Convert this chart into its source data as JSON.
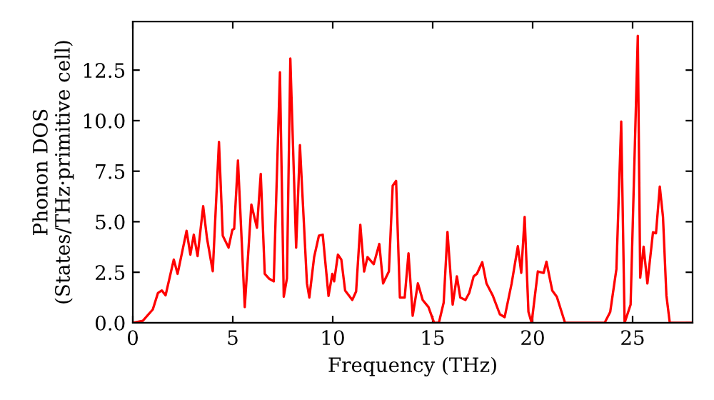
{
  "chart_data": {
    "type": "line",
    "xlabel": "Frequency (THz)",
    "ylabel": "Phonon DOS\n(States/THz·primitive cell)",
    "xlim": [
      0,
      28
    ],
    "ylim": [
      0,
      14.9
    ],
    "xticks": [
      0,
      5,
      10,
      15,
      20,
      25
    ],
    "yticks": [
      {
        "value": 0,
        "label": "0.0"
      },
      2.5,
      {
        "value": 5,
        "label": "5.0"
      },
      7.5,
      {
        "value": 10,
        "label": "10.0"
      },
      12.5
    ],
    "grid": false,
    "legend": false,
    "marker": "none",
    "line_style": "solid",
    "series": [
      {
        "color": "#ff0000",
        "x": [
          0,
          0.5,
          1.0,
          1.26,
          1.45,
          1.64,
          2.05,
          2.24,
          2.69,
          2.88,
          3.05,
          3.24,
          3.52,
          3.71,
          4.0,
          4.31,
          4.5,
          4.79,
          4.98,
          5.07,
          5.26,
          5.6,
          5.93,
          6.21,
          6.4,
          6.6,
          6.81,
          7.05,
          7.36,
          7.55,
          7.71,
          7.88,
          8.17,
          8.36,
          8.71,
          8.83,
          9.07,
          9.31,
          9.5,
          9.79,
          9.98,
          10.07,
          10.26,
          10.43,
          10.62,
          10.98,
          11.17,
          11.38,
          11.57,
          11.74,
          12.05,
          12.33,
          12.52,
          12.81,
          13.0,
          13.17,
          13.36,
          13.6,
          13.79,
          14.0,
          14.26,
          14.5,
          14.79,
          15.07,
          15.31,
          15.55,
          15.74,
          16.0,
          16.21,
          16.38,
          16.64,
          16.83,
          17.05,
          17.21,
          17.48,
          17.69,
          18.0,
          18.36,
          18.6,
          18.95,
          19.26,
          19.43,
          19.6,
          19.79,
          19.95,
          20.26,
          20.55,
          20.69,
          20.98,
          21.21,
          21.62,
          23.6,
          23.88,
          24.19,
          24.43,
          24.6,
          24.9,
          25.26,
          25.38,
          25.55,
          25.74,
          26.02,
          26.17,
          26.36,
          26.52,
          26.69,
          26.86,
          28
        ],
        "values": [
          0,
          0.1,
          0.66,
          1.48,
          1.6,
          1.36,
          3.13,
          2.42,
          4.55,
          3.37,
          4.36,
          3.3,
          5.77,
          4.19,
          2.55,
          8.95,
          4.31,
          3.72,
          4.6,
          4.65,
          8.03,
          0.78,
          5.85,
          4.7,
          7.37,
          2.42,
          2.19,
          2.05,
          12.39,
          1.29,
          2.2,
          13.07,
          3.72,
          8.79,
          1.96,
          1.25,
          3.25,
          4.31,
          4.36,
          1.33,
          2.42,
          2.05,
          3.37,
          3.13,
          1.6,
          1.13,
          1.55,
          4.85,
          2.54,
          3.25,
          2.9,
          3.9,
          1.95,
          2.54,
          6.78,
          7.02,
          1.25,
          1.25,
          3.44,
          0.35,
          1.95,
          1.13,
          0.78,
          0,
          0,
          1.0,
          4.5,
          0.9,
          2.3,
          1.25,
          1.13,
          1.48,
          2.3,
          2.42,
          3.0,
          1.95,
          1.36,
          0.42,
          0.28,
          1.95,
          3.79,
          2.47,
          5.24,
          0.54,
          0,
          2.54,
          2.47,
          3.02,
          1.6,
          1.29,
          0,
          0,
          0.54,
          2.66,
          9.96,
          0,
          0.9,
          14.2,
          2.23,
          3.76,
          1.95,
          4.48,
          4.43,
          6.74,
          5.24,
          1.36,
          0,
          0
        ]
      }
    ]
  }
}
